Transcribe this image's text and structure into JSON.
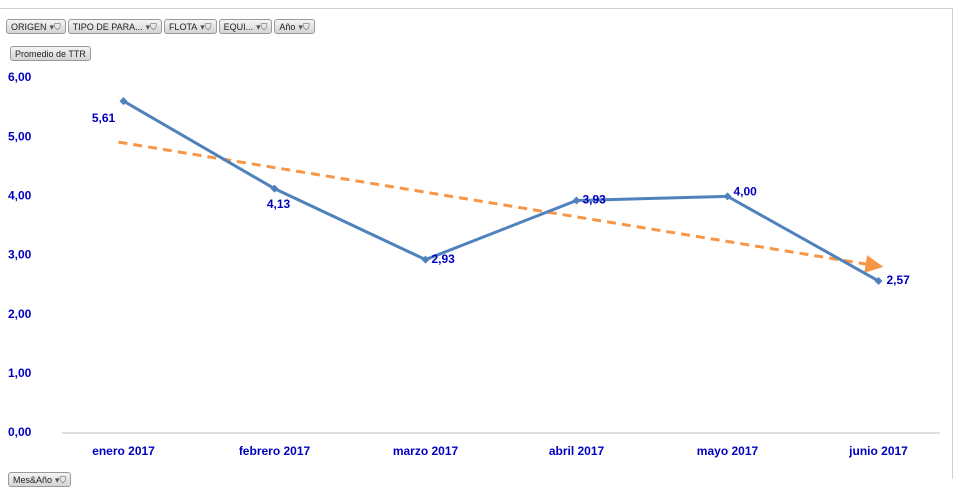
{
  "chart_data": {
    "type": "line",
    "filter_buttons": [
      "ORIGEN",
      "TIPO DE PARA...",
      "FLOTA",
      "EQUI...",
      "Año"
    ],
    "value_field": "Promedio de TTR",
    "axis_field": "Mes&Año",
    "categories": [
      "enero 2017",
      "febrero 2017",
      "marzo 2017",
      "abril 2017",
      "mayo 2017",
      "junio 2017"
    ],
    "series": [
      {
        "name": "Promedio de TTR",
        "color": "#4f81bd",
        "values": [
          5.61,
          4.13,
          2.93,
          3.93,
          4.0,
          2.57
        ],
        "value_labels": [
          "5,61",
          "4,13",
          "2,93",
          "3,93",
          "4,00",
          "2,57"
        ]
      }
    ],
    "trendline": {
      "type": "linear",
      "color": "#f79646"
    },
    "ylim": [
      0,
      6
    ],
    "yticks": [
      {
        "value": 0,
        "label": "0,00"
      },
      {
        "value": 1,
        "label": "1,00"
      },
      {
        "value": 2,
        "label": "2,00"
      },
      {
        "value": 3,
        "label": "3,00"
      },
      {
        "value": 4,
        "label": "4,00"
      },
      {
        "value": 5,
        "label": "5,00"
      },
      {
        "value": 6,
        "label": "6,00"
      }
    ]
  }
}
